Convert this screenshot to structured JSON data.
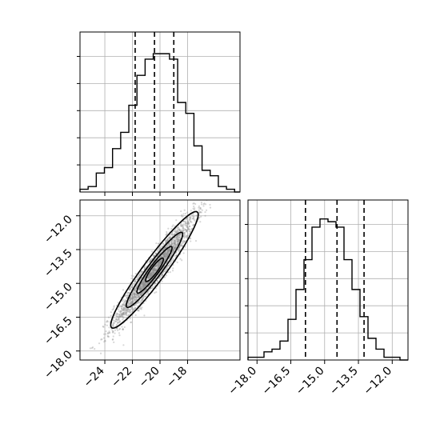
{
  "chart_data": [
    {
      "panel": "top-left",
      "type": "histogram",
      "title": "",
      "xlim": [
        -25.8,
        -14.2
      ],
      "bin_edges": [
        -25.8,
        -25.21,
        -24.62,
        -24.03,
        -23.44,
        -22.85,
        -22.26,
        -21.67,
        -21.08,
        -20.49,
        -19.9,
        -19.31,
        -18.72,
        -18.13,
        -17.54,
        -16.95,
        -16.36,
        -15.77,
        -15.18,
        -14.59,
        -14.2
      ],
      "counts": [
        0.1,
        0.2,
        0.7,
        0.9,
        1.6,
        2.2,
        3.2,
        4.3,
        4.9,
        5.1,
        5.1,
        4.9,
        3.3,
        2.9,
        1.7,
        0.8,
        0.6,
        0.2,
        0.1,
        0.0
      ],
      "ylim": [
        0,
        5.9
      ],
      "quantiles": [
        -21.8,
        -20.4,
        -19.0
      ],
      "grid": true,
      "show_x_ticklabels": false
    },
    {
      "panel": "bottom-left",
      "type": "scatter",
      "title": "",
      "xlim": [
        -25.8,
        -14.2
      ],
      "ylim": [
        -18.4,
        -11.3
      ],
      "xticks": [
        -24,
        -22,
        -20,
        -18
      ],
      "xtick_labels": [
        "−24",
        "−22",
        "−20",
        "−18"
      ],
      "yticks": [
        -12.0,
        -13.5,
        -15.0,
        -16.5,
        -18.0
      ],
      "ytick_labels": [
        "−12.0",
        "−13.5",
        "−15.0",
        "−16.5",
        "−18.0"
      ],
      "correlation": 0.95,
      "mean": [
        -20.4,
        -14.4
      ],
      "std": [
        1.45,
        1.2
      ],
      "contours": "2D density contours (1σ, 1.5σ, 2σ levels)",
      "grid": true
    },
    {
      "panel": "bottom-right",
      "type": "histogram",
      "title": "",
      "xlim": [
        -18.4,
        -11.3
      ],
      "bin_edges": [
        -18.4,
        -18.045,
        -17.69,
        -17.335,
        -16.98,
        -16.625,
        -16.27,
        -15.915,
        -15.56,
        -15.205,
        -14.85,
        -14.495,
        -14.14,
        -13.785,
        -13.43,
        -13.075,
        -12.72,
        -12.365,
        -12.01,
        -11.655,
        -11.3
      ],
      "counts": [
        0.1,
        0.1,
        0.3,
        0.4,
        0.7,
        1.5,
        2.6,
        3.7,
        4.9,
        5.2,
        5.1,
        4.9,
        3.7,
        2.6,
        1.6,
        0.8,
        0.4,
        0.1,
        0.1,
        0.0
      ],
      "ylim": [
        0,
        5.9
      ],
      "quantiles": [
        -15.85,
        -14.45,
        -13.25
      ],
      "xticks": [
        -18.0,
        -16.5,
        -15.0,
        -13.5,
        -12.0
      ],
      "xtick_labels": [
        "−18.0",
        "−16.5",
        "−15.0",
        "−13.5",
        "−12.0"
      ],
      "grid": true
    }
  ]
}
